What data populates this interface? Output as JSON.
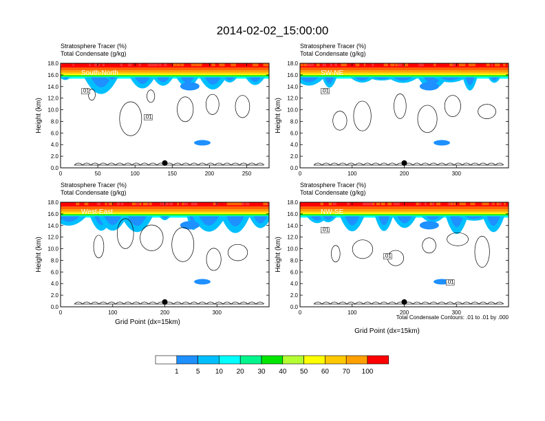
{
  "title": "2014-02-02_15:00:00",
  "colors": {
    "bins": [
      "#ffffff",
      "#1e90ff",
      "#00bfff",
      "#00ffff",
      "#00f58c",
      "#00e600",
      "#b4ff32",
      "#ffff00",
      "#ffc800",
      "#ffa000",
      "#ff6400",
      "#ff0000"
    ],
    "contour": "#000000"
  },
  "chart_data": [
    {
      "type": "heatmap",
      "panel_label": "South-North",
      "header": [
        "Stratosphere Tracer   (%)",
        "Total Condensate   (g/kg)"
      ],
      "xlabel": "",
      "ylabel": "Height (km)",
      "xlim": [
        0,
        280
      ],
      "ylim": [
        0,
        18
      ],
      "xticks": [
        "0",
        "50",
        "100",
        "150",
        "200",
        "250"
      ],
      "yticks": [
        "0.0",
        "2.0",
        "4.0",
        "6.0",
        "8.0",
        "10.0",
        "12.0",
        "14.0",
        "16.0",
        "18.0"
      ],
      "marker_x": 140,
      "tropopause_km": 16.3,
      "contour_labels": [
        ".01",
        ".01"
      ]
    },
    {
      "type": "heatmap",
      "panel_label": "SW-NE",
      "header": [
        "Stratosphere Tracer   (%)",
        "Total Condensate   (g/kg)"
      ],
      "xlabel": "",
      "ylabel": "Height (km)",
      "xlim": [
        0,
        400
      ],
      "ylim": [
        0,
        18
      ],
      "xticks": [
        "0",
        "100",
        "200",
        "300"
      ],
      "yticks": [
        "0.0",
        "2.0",
        "4.0",
        "6.0",
        "8.0",
        "10.0",
        "12.0",
        "14.0",
        "16.0",
        "18.0"
      ],
      "marker_x": 200,
      "tropopause_km": 16.3,
      "contour_labels": [
        ".01"
      ]
    },
    {
      "type": "heatmap",
      "panel_label": "West-East",
      "header": [
        "Stratosphere Tracer   (%)",
        "Total Condensate   (g/kg)"
      ],
      "xlabel": "Grid Point (dx=15km)",
      "ylabel": "Height (km)",
      "xlim": [
        0,
        400
      ],
      "ylim": [
        0,
        18
      ],
      "xticks": [
        "0",
        "100",
        "200",
        "300"
      ],
      "yticks": [
        "0.0",
        "2.0",
        "4.0",
        "6.0",
        "8.0",
        "10.0",
        "12.0",
        "14.0",
        "16.0",
        "18.0"
      ],
      "marker_x": 200,
      "tropopause_km": 16.3,
      "contour_labels": []
    },
    {
      "type": "heatmap",
      "panel_label": "NW-SE",
      "header": [
        "Stratosphere Tracer   (%)",
        "Total Condensate   (g/kg)"
      ],
      "xlabel": "Grid Point (dx=15km)",
      "ylabel": "Height (km)",
      "xlim": [
        0,
        400
      ],
      "ylim": [
        0,
        18
      ],
      "xticks": [
        "0",
        "100",
        "200",
        "300"
      ],
      "yticks": [
        "0.0",
        "2.0",
        "4.0",
        "6.0",
        "8.0",
        "10.0",
        "12.0",
        "14.0",
        "16.0",
        "18.0"
      ],
      "marker_x": 200,
      "tropopause_km": 16.3,
      "contour_labels": [
        ".01",
        ".01",
        ".01"
      ],
      "note": "Total Condensate Contours: .01 to .01 by .000"
    }
  ],
  "colorbar": {
    "labels": [
      "1",
      "5",
      "10",
      "20",
      "30",
      "40",
      "50",
      "60",
      "70",
      "100"
    ]
  }
}
